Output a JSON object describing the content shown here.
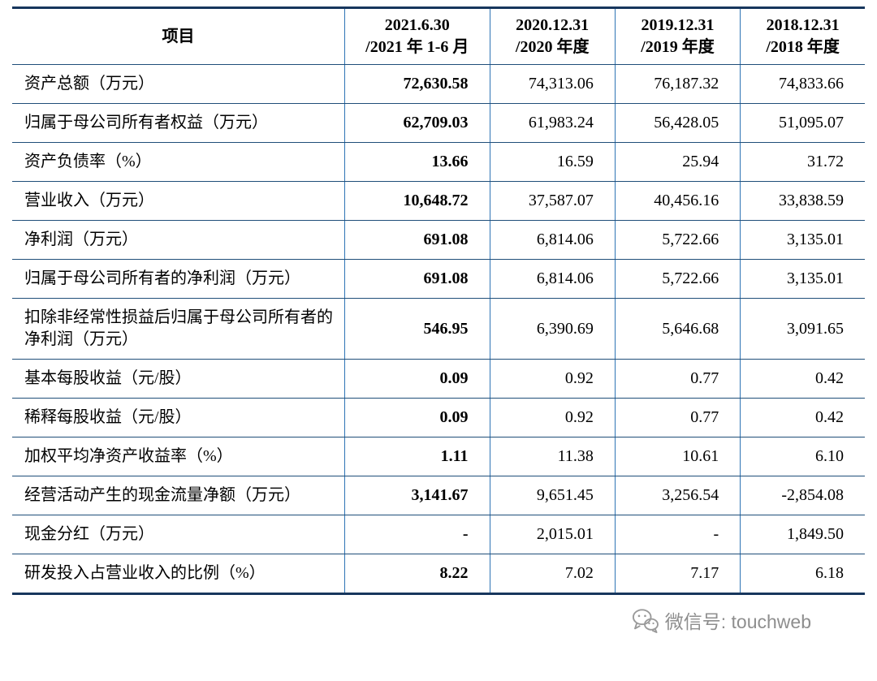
{
  "table": {
    "header": {
      "label_col": "项目",
      "periods": [
        {
          "line1": "2021.6.30",
          "line2": "/2021 年 1-6 月"
        },
        {
          "line1": "2020.12.31",
          "line2": "/2020 年度"
        },
        {
          "line1": "2019.12.31",
          "line2": "/2019 年度"
        },
        {
          "line1": "2018.12.31",
          "line2": "/2018 年度"
        }
      ]
    },
    "rows": [
      {
        "label": "资产总额（万元）",
        "values": [
          "72,630.58",
          "74,313.06",
          "76,187.32",
          "74,833.66"
        ]
      },
      {
        "label": "归属于母公司所有者权益（万元）",
        "values": [
          "62,709.03",
          "61,983.24",
          "56,428.05",
          "51,095.07"
        ]
      },
      {
        "label": "资产负债率（%）",
        "values": [
          "13.66",
          "16.59",
          "25.94",
          "31.72"
        ]
      },
      {
        "label": "营业收入（万元）",
        "values": [
          "10,648.72",
          "37,587.07",
          "40,456.16",
          "33,838.59"
        ]
      },
      {
        "label": "净利润（万元）",
        "values": [
          "691.08",
          "6,814.06",
          "5,722.66",
          "3,135.01"
        ]
      },
      {
        "label": "归属于母公司所有者的净利润（万元）",
        "values": [
          "691.08",
          "6,814.06",
          "5,722.66",
          "3,135.01"
        ]
      },
      {
        "label": "扣除非经常性损益后归属于母公司所有者的净利润（万元）",
        "values": [
          "546.95",
          "6,390.69",
          "5,646.68",
          "3,091.65"
        ]
      },
      {
        "label": "基本每股收益（元/股）",
        "values": [
          "0.09",
          "0.92",
          "0.77",
          "0.42"
        ]
      },
      {
        "label": "稀释每股收益（元/股）",
        "values": [
          "0.09",
          "0.92",
          "0.77",
          "0.42"
        ]
      },
      {
        "label": "加权平均净资产收益率（%）",
        "values": [
          "1.11",
          "11.38",
          "10.61",
          "6.10"
        ]
      },
      {
        "label": "经营活动产生的现金流量净额（万元）",
        "values": [
          "3,141.67",
          "9,651.45",
          "3,256.54",
          "-2,854.08"
        ]
      },
      {
        "label": "现金分红（万元）",
        "values": [
          "-",
          "2,015.01",
          "-",
          "1,849.50"
        ]
      },
      {
        "label": "研发投入占营业收入的比例（%）",
        "values": [
          "8.22",
          "7.02",
          "7.17",
          "6.18"
        ]
      }
    ]
  },
  "footer": {
    "wechat_text": "微信号: touchweb"
  },
  "colors": {
    "border_thick": "#17365D",
    "border_thin_h": "#1F4E79",
    "border_thin_v": "#2E74B5",
    "footer_gray": "#8e8e8e"
  }
}
